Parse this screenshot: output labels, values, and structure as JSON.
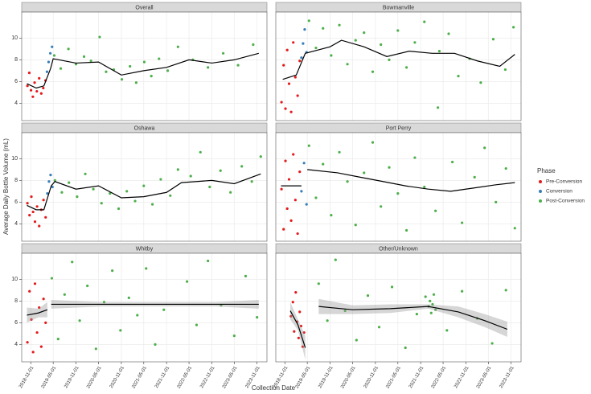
{
  "chart_data": {
    "type": "scatter",
    "x_label": "Collection Date",
    "y_label": "Average Daily Bottle Volume (mL)",
    "legend_title": "Phase",
    "legend": "right",
    "grid": true,
    "series": [
      {
        "name": "Pre-Conversion",
        "color": "#e41a1c"
      },
      {
        "name": "Conversion",
        "color": "#377eb8"
      },
      {
        "name": "Post-Conversion",
        "color": "#4daf4a"
      }
    ],
    "xlim": [
      "2018-08-20",
      "2024-01-20"
    ],
    "xticks": [
      "2018-11-01",
      "2019-05-01",
      "2019-11-01",
      "2020-05-01",
      "2020-11-01",
      "2021-05-01",
      "2021-11-01",
      "2022-05-01",
      "2022-11-01",
      "2023-05-01",
      "2023-11-01"
    ],
    "ylim": [
      2.4,
      12.4
    ],
    "yticks": [
      4,
      6,
      8,
      10
    ],
    "facets": [
      {
        "title": "Overall",
        "points": [
          {
            "x": [
              "2018-10-05",
              "2018-10-20",
              "2018-11-03",
              "2018-11-18",
              "2018-12-02",
              "2018-12-20",
              "2019-01-08",
              "2019-01-25",
              "2019-02-10",
              "2019-02-28"
            ],
            "y": [
              5.6,
              6.8,
              5.2,
              4.6,
              5.9,
              5.1,
              6.3,
              4.9,
              5.4,
              6.1
            ]
          },
          {
            "x": [
              "2019-03-12",
              "2019-03-25",
              "2019-04-08",
              "2019-04-22"
            ],
            "y": [
              6.9,
              7.8,
              8.6,
              9.2
            ]
          },
          {
            "x": [
              "2019-05-10",
              "2019-07-01",
              "2019-09-01",
              "2019-11-01",
              "2020-01-05",
              "2020-03-01",
              "2020-05-10",
              "2020-07-01",
              "2020-09-01",
              "2020-11-05",
              "2021-01-10",
              "2021-03-01",
              "2021-05-05",
              "2021-07-01",
              "2021-09-01",
              "2021-11-10",
              "2022-02-01",
              "2022-06-01",
              "2022-10-01",
              "2023-02-01",
              "2023-06-01",
              "2023-10-01"
            ],
            "y": [
              8.4,
              7.2,
              9.0,
              7.6,
              8.3,
              7.9,
              10.1,
              6.9,
              7.1,
              6.2,
              7.4,
              5.9,
              7.8,
              6.5,
              8.1,
              7.0,
              9.2,
              8.0,
              7.3,
              8.6,
              7.5,
              9.4
            ]
          }
        ],
        "trend": {
          "x": [
            "2018-10-01",
            "2018-12-15",
            "2019-02-15",
            "2019-04-10",
            "2019-05-01",
            "2019-11-01",
            "2020-05-01",
            "2020-11-01",
            "2021-05-01",
            "2021-11-01",
            "2022-05-01",
            "2022-11-01",
            "2023-05-01",
            "2023-11-15"
          ],
          "y": [
            5.8,
            5.4,
            5.6,
            7.2,
            8.1,
            7.7,
            7.8,
            6.6,
            7.0,
            7.3,
            8.0,
            7.7,
            8.0,
            8.6
          ]
        }
      },
      {
        "title": "Bowmanville",
        "points": [
          {
            "x": [
              "2018-10-05",
              "2018-10-22",
              "2018-11-06",
              "2018-11-20",
              "2018-12-05",
              "2018-12-22",
              "2019-01-08",
              "2019-01-25",
              "2019-02-12",
              "2019-03-01"
            ],
            "y": [
              4.1,
              7.5,
              3.5,
              8.9,
              5.8,
              3.2,
              9.6,
              6.4,
              4.7,
              7.9
            ]
          },
          {
            "x": [
              "2019-03-15",
              "2019-03-28",
              "2019-04-10",
              "2019-04-25"
            ],
            "y": [
              8.2,
              9.5,
              10.8,
              8.7
            ]
          },
          {
            "x": [
              "2019-05-15",
              "2019-07-10",
              "2019-09-05",
              "2019-11-10",
              "2020-01-15",
              "2020-03-20",
              "2020-05-25",
              "2020-08-01",
              "2020-10-10",
              "2020-12-15",
              "2021-02-20",
              "2021-05-01",
              "2021-07-10",
              "2021-09-15",
              "2021-12-01",
              "2022-03-20",
              "2022-04-01",
              "2022-06-15",
              "2022-09-01",
              "2022-12-01",
              "2023-03-01",
              "2023-06-10",
              "2023-09-15",
              "2023-11-20"
            ],
            "y": [
              11.6,
              9.1,
              10.9,
              8.4,
              11.2,
              7.6,
              9.8,
              10.5,
              6.9,
              9.4,
              8.0,
              10.7,
              7.3,
              9.6,
              11.5,
              3.6,
              8.8,
              10.4,
              6.5,
              8.1,
              5.9,
              9.9,
              7.1,
              11.0
            ]
          }
        ],
        "trend": {
          "x": [
            "2018-10-15",
            "2019-02-01",
            "2019-04-15",
            "2019-11-01",
            "2020-02-01",
            "2020-08-01",
            "2021-02-01",
            "2021-08-01",
            "2022-02-01",
            "2022-08-01",
            "2023-02-01",
            "2023-08-01",
            "2023-12-01"
          ],
          "y": [
            6.2,
            6.6,
            8.6,
            9.2,
            9.8,
            9.2,
            8.3,
            8.8,
            8.6,
            8.6,
            7.9,
            7.4,
            8.5
          ]
        }
      },
      {
        "title": "Oshawa",
        "points": [
          {
            "x": [
              "2018-10-05",
              "2018-10-22",
              "2018-11-06",
              "2018-11-20",
              "2018-12-05",
              "2018-12-22",
              "2019-01-08",
              "2019-01-25",
              "2019-02-12",
              "2019-03-01"
            ],
            "y": [
              5.9,
              4.8,
              6.5,
              5.1,
              4.2,
              5.6,
              3.8,
              5.3,
              6.2,
              4.6
            ]
          },
          {
            "x": [
              "2019-03-15",
              "2019-03-28",
              "2019-04-10",
              "2019-04-25"
            ],
            "y": [
              6.8,
              7.9,
              8.5,
              7.4
            ]
          },
          {
            "x": [
              "2019-05-15",
              "2019-07-10",
              "2019-09-05",
              "2019-11-10",
              "2020-01-15",
              "2020-03-20",
              "2020-05-25",
              "2020-08-01",
              "2020-10-10",
              "2020-12-15",
              "2021-02-20",
              "2021-05-01",
              "2021-07-10",
              "2021-09-15",
              "2021-12-01",
              "2022-02-01",
              "2022-05-15",
              "2022-08-01",
              "2022-10-15",
              "2023-01-10",
              "2023-04-01",
              "2023-07-01",
              "2023-09-20",
              "2023-12-01"
            ],
            "y": [
              8.0,
              6.9,
              7.8,
              6.5,
              8.6,
              7.2,
              5.9,
              6.8,
              5.4,
              7.0,
              6.1,
              7.5,
              5.8,
              8.1,
              6.6,
              9.0,
              8.4,
              10.6,
              7.4,
              8.9,
              6.9,
              9.3,
              7.9,
              10.2
            ]
          }
        ],
        "trend": {
          "x": [
            "2018-10-01",
            "2018-12-15",
            "2019-02-15",
            "2019-04-15",
            "2019-05-15",
            "2019-11-01",
            "2020-05-01",
            "2020-11-01",
            "2021-05-01",
            "2021-11-01",
            "2022-03-01",
            "2022-11-01",
            "2023-05-01",
            "2023-12-01"
          ],
          "y": [
            5.7,
            5.3,
            5.3,
            7.5,
            7.9,
            7.2,
            7.5,
            6.4,
            6.5,
            6.9,
            7.8,
            8.0,
            7.7,
            8.6
          ]
        }
      },
      {
        "title": "Port Perry",
        "points": [
          {
            "x": [
              "2018-10-05",
              "2018-10-22",
              "2018-11-06",
              "2018-11-20",
              "2018-12-05",
              "2018-12-22",
              "2019-01-08",
              "2019-01-25",
              "2019-02-12",
              "2019-03-01"
            ],
            "y": [
              7.2,
              3.5,
              9.8,
              5.4,
              8.1,
              4.3,
              10.4,
              6.2,
              3.1,
              8.8
            ]
          },
          {
            "x": [
              "2019-03-15",
              "2019-04-05",
              "2019-04-25"
            ],
            "y": [
              7.0,
              9.6,
              5.8
            ]
          },
          {
            "x": [
              "2019-05-15",
              "2019-07-10",
              "2019-09-05",
              "2019-11-10",
              "2020-01-15",
              "2020-03-20",
              "2020-05-25",
              "2020-08-01",
              "2020-10-10",
              "2020-12-15",
              "2021-02-20",
              "2021-05-01",
              "2021-07-10",
              "2021-09-15",
              "2021-12-01",
              "2022-03-01",
              "2022-07-15",
              "2022-10-01",
              "2023-01-10",
              "2023-04-01",
              "2023-07-01",
              "2023-09-20",
              "2023-12-01"
            ],
            "y": [
              11.2,
              6.4,
              9.5,
              4.8,
              10.6,
              7.9,
              3.9,
              8.7,
              11.5,
              5.6,
              9.2,
              6.8,
              3.4,
              10.1,
              7.4,
              5.2,
              9.7,
              4.1,
              8.3,
              11.0,
              6.0,
              9.1,
              3.6
            ]
          }
        ],
        "trend": {
          "x": [
            "2018-10-01",
            "2019-03-15",
            null,
            "2019-05-01",
            "2020-01-01",
            "2020-07-01",
            "2021-01-01",
            "2021-07-01",
            "2022-01-01",
            "2022-07-01",
            "2023-01-01",
            "2023-07-01",
            "2023-12-01"
          ],
          "y": [
            7.5,
            7.5,
            null,
            9.0,
            8.7,
            8.3,
            7.9,
            7.5,
            7.2,
            7.0,
            7.3,
            7.6,
            7.8
          ]
        }
      },
      {
        "title": "Whitby",
        "points": [
          {
            "x": [
              "2018-10-05",
              "2018-10-22",
              "2018-11-06",
              "2018-11-20",
              "2018-12-05",
              "2018-12-22",
              "2019-01-08",
              "2019-01-25",
              "2019-02-12",
              "2019-03-01"
            ],
            "y": [
              4.2,
              8.9,
              6.3,
              3.3,
              9.6,
              5.1,
              7.4,
              3.8,
              8.2,
              6.0
            ]
          },
          {
            "x": [],
            "y": []
          },
          {
            "x": [
              "2019-04-20",
              "2019-06-10",
              "2019-08-01",
              "2019-10-01",
              "2019-12-01",
              "2020-02-01",
              "2020-04-10",
              "2020-06-15",
              "2020-08-20",
              "2020-10-25",
              "2021-01-01",
              "2021-03-10",
              "2021-05-20",
              "2021-08-01",
              "2021-10-10",
              "2022-04-15",
              "2022-07-01",
              "2022-10-01",
              "2023-01-15",
              "2023-05-01",
              "2023-08-01",
              "2023-11-01"
            ],
            "y": [
              10.1,
              4.5,
              8.6,
              11.6,
              6.2,
              9.4,
              3.6,
              7.9,
              10.8,
              5.3,
              8.3,
              6.7,
              11.0,
              4.0,
              7.2,
              9.8,
              5.8,
              11.7,
              7.6,
              4.8,
              10.3,
              6.5
            ]
          }
        ],
        "trend": {
          "x": [
            "2018-10-01",
            "2019-01-01",
            "2019-03-15",
            null,
            "2019-04-15",
            "2020-06-01",
            "2021-09-01",
            "2022-12-01",
            "2023-11-15"
          ],
          "y": [
            6.7,
            6.9,
            7.2,
            null,
            7.7,
            7.7,
            7.7,
            7.7,
            7.7
          ],
          "lower": [
            6.0,
            6.5,
            6.5,
            null,
            7.3,
            7.5,
            7.5,
            7.5,
            7.3
          ],
          "upper": [
            7.4,
            7.3,
            7.9,
            null,
            8.1,
            7.9,
            7.9,
            7.9,
            8.1
          ]
        }
      },
      {
        "title": "Other/Unknown",
        "points": [
          {
            "x": [
              "2018-12-20",
              "2019-01-05",
              "2019-01-15",
              "2019-01-28",
              "2019-02-08",
              "2019-02-20",
              "2019-03-01",
              "2019-03-12",
              "2019-03-25",
              "2019-04-05"
            ],
            "y": [
              6.6,
              7.9,
              5.2,
              8.8,
              6.1,
              4.6,
              7.0,
              5.7,
              3.8,
              5.1
            ]
          },
          {
            "x": [],
            "y": []
          },
          {
            "x": [
              "2019-08-01",
              "2019-10-10",
              "2019-12-15",
              "2020-03-01",
              "2020-06-01",
              "2020-09-01",
              "2020-12-01",
              "2021-03-15",
              "2021-07-01",
              "2021-10-01",
              "2021-12-10",
              "2022-01-05",
              "2022-01-15",
              "2022-01-25",
              "2022-02-05",
              "2022-02-15",
              "2022-03-01",
              "2022-06-01",
              "2022-10-01",
              "2023-02-01",
              "2023-06-01",
              "2023-09-20"
            ],
            "y": [
              9.6,
              6.2,
              11.8,
              7.1,
              4.4,
              8.5,
              5.6,
              9.3,
              3.7,
              6.8,
              8.4,
              7.5,
              8.0,
              6.9,
              7.7,
              8.6,
              7.2,
              5.3,
              8.9,
              6.4,
              4.1,
              9.0
            ]
          }
        ],
        "trend": {
          "x": [
            "2018-12-15",
            "2019-02-15",
            "2019-04-15",
            null,
            "2019-08-01",
            "2020-05-01",
            "2021-03-01",
            "2022-01-01",
            "2022-09-01",
            "2023-04-01",
            "2023-10-01"
          ],
          "y": [
            7.1,
            5.8,
            3.7,
            null,
            7.5,
            7.2,
            7.3,
            7.5,
            7.0,
            6.2,
            5.4
          ],
          "lower": [
            6.3,
            5.3,
            2.6,
            null,
            6.8,
            6.8,
            6.9,
            7.3,
            6.5,
            5.6,
            4.7
          ],
          "upper": [
            7.9,
            6.3,
            4.8,
            null,
            8.2,
            7.6,
            7.7,
            7.7,
            7.5,
            6.8,
            6.1
          ]
        }
      }
    ]
  }
}
